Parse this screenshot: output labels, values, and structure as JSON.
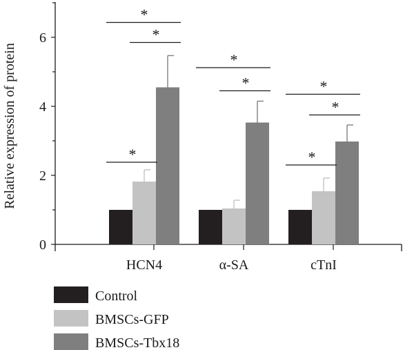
{
  "chart_data": {
    "type": "bar",
    "ylabel": "Relative expression of protein",
    "xlabel": "",
    "ylim": [
      0,
      7
    ],
    "yticks": [
      0,
      2,
      4,
      6
    ],
    "categories": [
      "HCN4",
      "α-SA",
      "cTnI"
    ],
    "series": [
      {
        "name": "Control",
        "values": [
          1,
          1,
          1
        ],
        "errors": [
          0,
          0,
          0
        ],
        "color": "#231f20"
      },
      {
        "name": "BMSCs-GFP",
        "values": [
          1.82,
          1.04,
          1.54
        ],
        "errors": [
          0.34,
          0.24,
          0.38
        ],
        "color": "#c3c3c3"
      },
      {
        "name": "BMSCs-Tbx18",
        "values": [
          4.55,
          3.53,
          2.98
        ],
        "errors": [
          0.92,
          0.62,
          0.48
        ],
        "color": "#7f7f7f"
      }
    ],
    "significance": [
      {
        "category": 0,
        "from": 0,
        "to": 1,
        "level": 2.38,
        "label": "*"
      },
      {
        "category": 0,
        "from": 0,
        "to": 2,
        "level": 6.43,
        "label": "*"
      },
      {
        "category": 0,
        "from": 1,
        "to": 2,
        "level": 5.85,
        "label": "*"
      },
      {
        "category": 1,
        "from": 0,
        "to": 2,
        "level": 5.12,
        "label": "*"
      },
      {
        "category": 1,
        "from": 1,
        "to": 2,
        "level": 4.45,
        "label": "*"
      },
      {
        "category": 2,
        "from": 0,
        "to": 1,
        "level": 2.3,
        "label": "*"
      },
      {
        "category": 2,
        "from": 0,
        "to": 2,
        "level": 4.35,
        "label": "*"
      },
      {
        "category": 2,
        "from": 1,
        "to": 2,
        "level": 3.75,
        "label": "*"
      }
    ],
    "legend_position": "bottom-left",
    "grid": false
  }
}
